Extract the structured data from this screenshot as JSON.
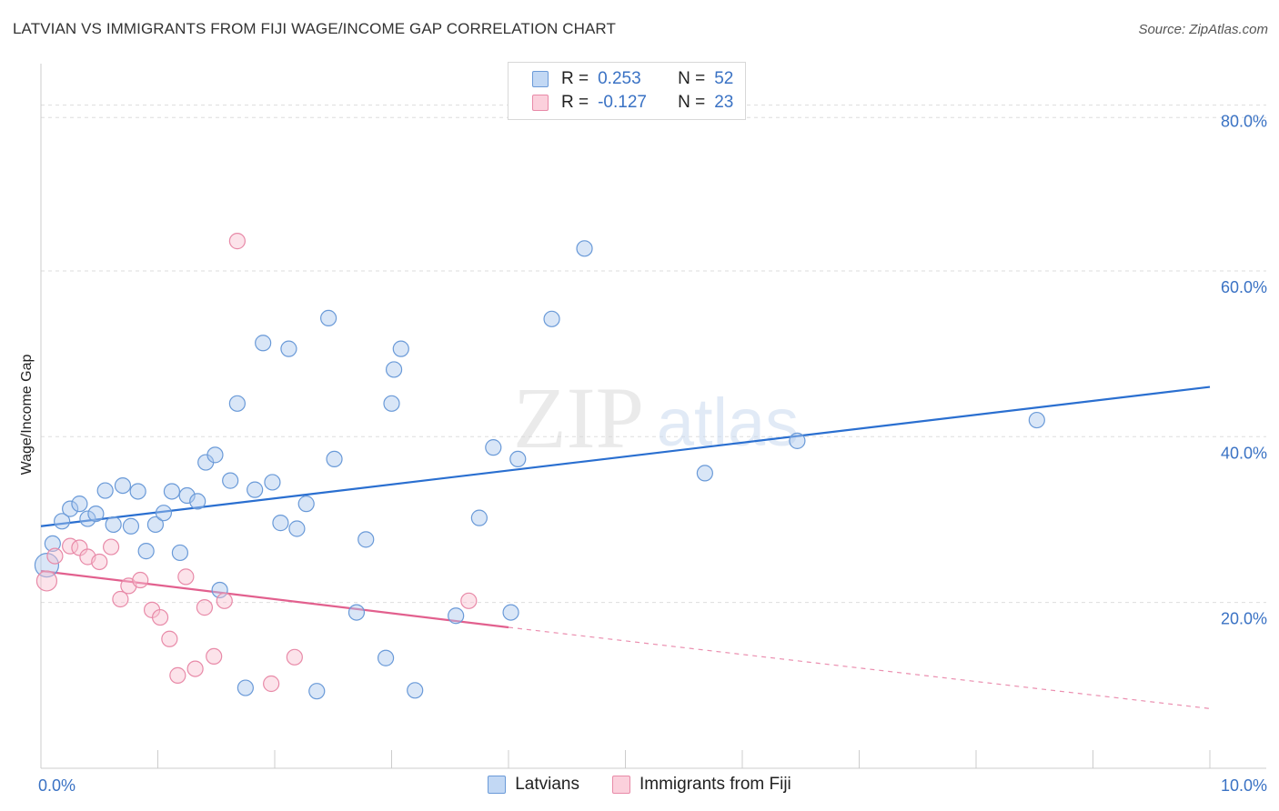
{
  "title": "LATVIAN VS IMMIGRANTS FROM FIJI WAGE/INCOME GAP CORRELATION CHART",
  "source": "Source: ZipAtlas.com",
  "watermark": {
    "zip": "ZIP",
    "atlas": "atlas"
  },
  "legend": {
    "r_label": "R =",
    "n_label": "N =",
    "rows": [
      {
        "r": "0.253",
        "n": "52"
      },
      {
        "r": "-0.127",
        "n": "23"
      }
    ]
  },
  "chart_data": {
    "type": "scatter",
    "title": "LATVIAN VS IMMIGRANTS FROM FIJI WAGE/INCOME GAP CORRELATION CHART",
    "xlabel": "",
    "ylabel": "Wage/Income Gap",
    "xlim": [
      0,
      10
    ],
    "ylim": [
      0,
      85
    ],
    "x_tick_labels": [
      "0.0%",
      "10.0%"
    ],
    "y_ticks": [
      20,
      40,
      60,
      80
    ],
    "y_tick_labels": [
      "20.0%",
      "40.0%",
      "60.0%",
      "80.0%"
    ],
    "grid": true,
    "legend_position": "top-center",
    "series": [
      {
        "name": "Latvians",
        "color": "#aac8ee",
        "edge": "#6a9ad8",
        "trend_color": "#2a6fd0",
        "r": 0.253,
        "n": 52,
        "trend": {
          "x0": 0.0,
          "y0": 29.2,
          "x1": 10.0,
          "y1": 46.0
        },
        "points": [
          [
            0.05,
            24.5
          ],
          [
            0.1,
            27.1
          ],
          [
            0.18,
            29.8
          ],
          [
            0.25,
            31.3
          ],
          [
            0.33,
            31.9
          ],
          [
            0.4,
            30.1
          ],
          [
            0.47,
            30.7
          ],
          [
            0.55,
            33.5
          ],
          [
            0.62,
            29.4
          ],
          [
            0.7,
            34.1
          ],
          [
            0.77,
            29.2
          ],
          [
            0.83,
            33.4
          ],
          [
            0.9,
            26.2
          ],
          [
            0.98,
            29.4
          ],
          [
            1.05,
            30.8
          ],
          [
            1.12,
            33.4
          ],
          [
            1.19,
            26.0
          ],
          [
            1.25,
            32.9
          ],
          [
            1.34,
            32.2
          ],
          [
            1.41,
            36.9
          ],
          [
            1.49,
            37.8
          ],
          [
            1.53,
            21.5
          ],
          [
            1.62,
            34.7
          ],
          [
            1.68,
            44.0
          ],
          [
            1.75,
            9.7
          ],
          [
            1.83,
            33.6
          ],
          [
            1.9,
            51.3
          ],
          [
            1.98,
            34.5
          ],
          [
            2.05,
            29.6
          ],
          [
            2.12,
            50.6
          ],
          [
            2.19,
            28.9
          ],
          [
            2.27,
            31.9
          ],
          [
            2.36,
            9.3
          ],
          [
            2.46,
            54.3
          ],
          [
            2.51,
            37.3
          ],
          [
            2.7,
            18.8
          ],
          [
            2.78,
            27.6
          ],
          [
            2.95,
            13.3
          ],
          [
            3.0,
            44.0
          ],
          [
            3.02,
            48.1
          ],
          [
            3.08,
            50.6
          ],
          [
            3.2,
            9.4
          ],
          [
            3.55,
            18.4
          ],
          [
            3.75,
            30.2
          ],
          [
            3.87,
            38.7
          ],
          [
            4.02,
            18.8
          ],
          [
            4.08,
            37.3
          ],
          [
            4.37,
            54.2
          ],
          [
            4.65,
            62.7
          ],
          [
            5.68,
            35.6
          ],
          [
            6.47,
            39.5
          ],
          [
            8.52,
            42.0
          ]
        ]
      },
      {
        "name": "Immigrants from Fiji",
        "color": "#f9c0d0",
        "edge": "#e88aa8",
        "trend_color": "#e2608e",
        "r": -0.127,
        "n": 23,
        "trend": {
          "x0": 0.0,
          "y0": 23.8,
          "x1": 4.0,
          "y1": 17.0
        },
        "trend_dashed": {
          "x0": 4.0,
          "y0": 17.0,
          "x1": 10.0,
          "y1": 7.2
        },
        "points": [
          [
            0.05,
            22.6
          ],
          [
            0.12,
            25.6
          ],
          [
            0.25,
            26.8
          ],
          [
            0.33,
            26.6
          ],
          [
            0.4,
            25.5
          ],
          [
            0.5,
            24.9
          ],
          [
            0.6,
            26.7
          ],
          [
            0.68,
            20.4
          ],
          [
            0.75,
            22.0
          ],
          [
            0.85,
            22.7
          ],
          [
            0.95,
            19.1
          ],
          [
            1.02,
            18.2
          ],
          [
            1.1,
            15.6
          ],
          [
            1.17,
            11.2
          ],
          [
            1.24,
            23.1
          ],
          [
            1.32,
            12.0
          ],
          [
            1.4,
            19.4
          ],
          [
            1.48,
            13.5
          ],
          [
            1.57,
            20.2
          ],
          [
            1.68,
            63.6
          ],
          [
            1.97,
            10.2
          ],
          [
            2.17,
            13.4
          ],
          [
            3.66,
            20.2
          ]
        ]
      }
    ]
  }
}
